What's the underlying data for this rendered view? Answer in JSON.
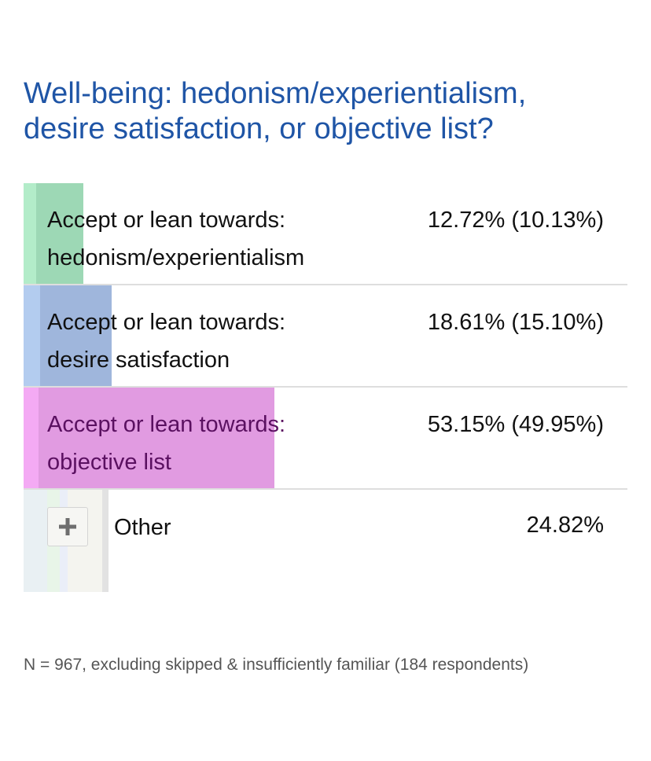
{
  "title_line1": "Well-being: hedonism/experientialism,",
  "title_line2": "desire satisfaction, or objective list?",
  "chart_data": {
    "type": "bar",
    "categories": [
      "Accept or lean towards: hedonism/experientialism",
      "Accept or lean towards: desire satisfaction",
      "Accept or lean towards: objective list",
      "Other"
    ],
    "series": [
      {
        "values": [
          12.72,
          18.61,
          53.15,
          24.82
        ]
      },
      {
        "values": [
          10.13,
          15.1,
          49.95,
          null
        ]
      }
    ],
    "ylim": [
      0,
      100
    ],
    "colors": {
      "hedonism": {
        "light": "#b3ecc9",
        "dark": "#9dd8b5"
      },
      "desire": {
        "light": "#b3ccef",
        "dark": "#9fb6dc"
      },
      "objective": {
        "light": "#f4aaf4",
        "dark": "#e19be1"
      }
    }
  },
  "rows": [
    {
      "line1": "Accept or lean towards:",
      "line2": "hedonism/experientialism",
      "value_text": "12.72% (10.13%)",
      "text_color": "#111111"
    },
    {
      "line1": "Accept or lean towards:",
      "line2": "desire satisfaction",
      "value_text": "18.61% (15.10%)",
      "text_color": "#111111"
    },
    {
      "line1": "Accept or lean towards:",
      "line2": "objective list",
      "value_text": "53.15% (49.95%)",
      "text_color": "#5a1060"
    }
  ],
  "other": {
    "label": "Other",
    "value_text": "24.82%",
    "stripe_colors": [
      "#e9f0f3",
      "#e8f5e8",
      "#eaeef8",
      "#f4f4ef",
      "#e2e2e2"
    ]
  },
  "footnote": "N = 967, excluding skipped & insufficiently familiar (184 respondents)"
}
